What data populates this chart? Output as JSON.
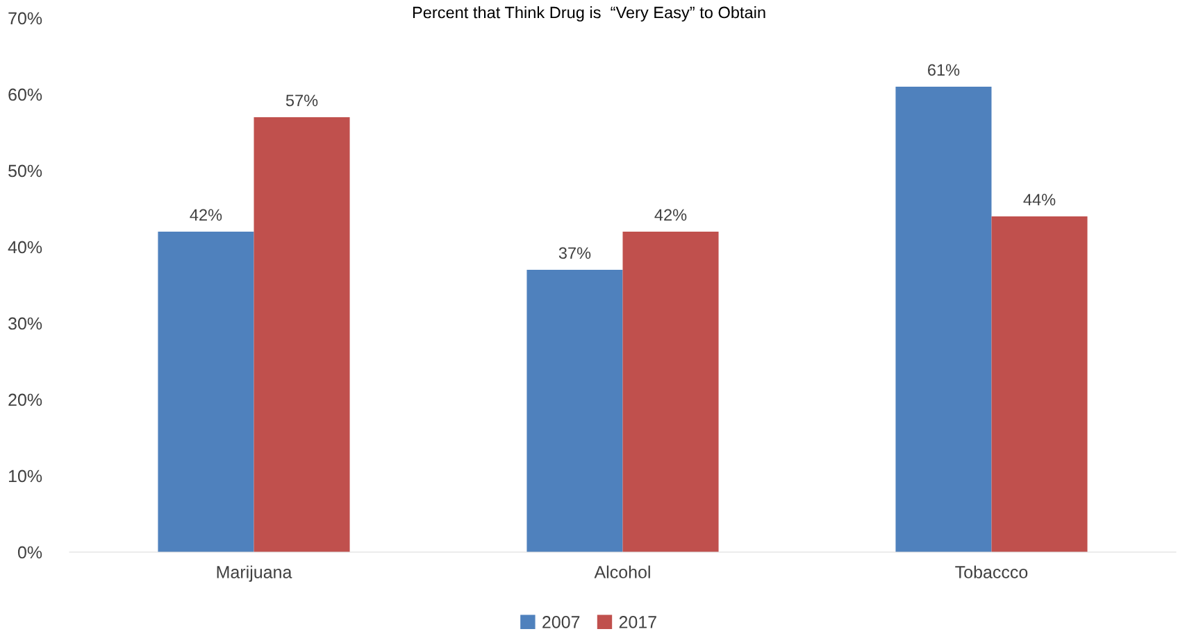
{
  "chart_data": {
    "type": "bar",
    "title": "Percent that Think Drug is  “Very Easy” to Obtain",
    "categories": [
      "Marijuana",
      "Alcohol",
      "Tobaccco"
    ],
    "series": [
      {
        "name": "2007",
        "color": "#4f81bd",
        "values": [
          42,
          37,
          61
        ],
        "value_labels": [
          "42%",
          "37%",
          "61%"
        ]
      },
      {
        "name": "2017",
        "color": "#c0504d",
        "values": [
          57,
          42,
          44
        ],
        "value_labels": [
          "57%",
          "42%",
          "44%"
        ]
      }
    ],
    "ylim": [
      0,
      70
    ],
    "yticks": [
      {
        "value": 0,
        "label": "0%"
      },
      {
        "value": 10,
        "label": "10%"
      },
      {
        "value": 20,
        "label": "20%"
      },
      {
        "value": 30,
        "label": "30%"
      },
      {
        "value": 40,
        "label": "40%"
      },
      {
        "value": 50,
        "label": "50%"
      },
      {
        "value": 60,
        "label": "60%"
      },
      {
        "value": 70,
        "label": "70%"
      }
    ],
    "grid": false,
    "legend": "bottom"
  }
}
